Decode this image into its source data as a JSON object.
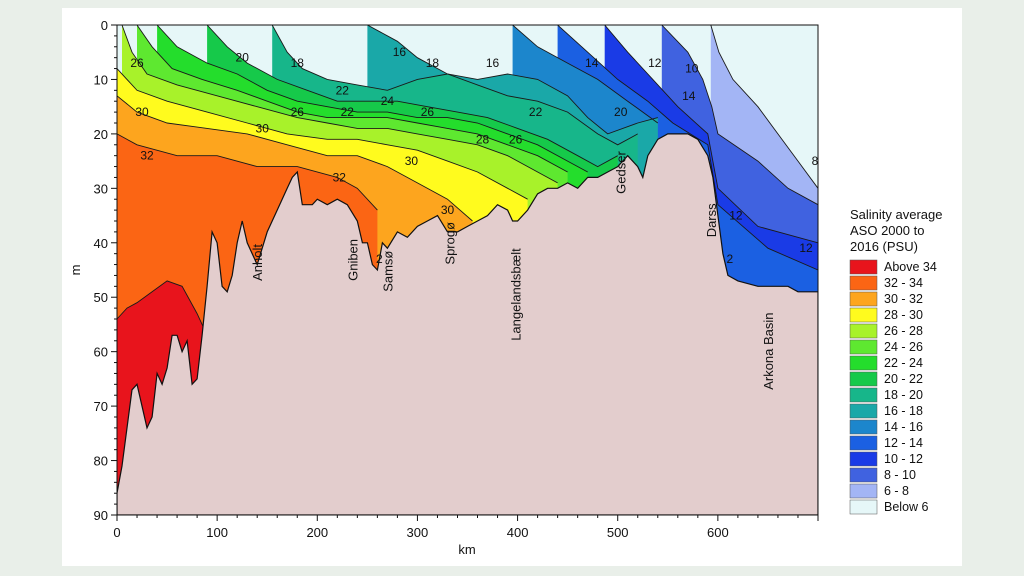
{
  "chart_data": {
    "type": "heatmap",
    "title": "",
    "xlabel": "km",
    "ylabel": "m",
    "xlim": [
      0,
      700
    ],
    "ylim": [
      0,
      90
    ],
    "x_ticks": [
      "0",
      "100",
      "200",
      "300",
      "400",
      "500",
      "600"
    ],
    "y_ticks": [
      "0",
      "10",
      "20",
      "30",
      "40",
      "50",
      "60",
      "70",
      "80",
      "90"
    ],
    "legend": {
      "title_lines": [
        "Salinity average",
        "ASO 2000 to",
        "2016 (PSU)"
      ],
      "items": [
        {
          "label": "Above 34",
          "color": "#e8141c"
        },
        {
          "label": "32 - 34",
          "color": "#fb6514"
        },
        {
          "label": "30 - 32",
          "color": "#fda51e"
        },
        {
          "label": "28 - 30",
          "color": "#fffb1e"
        },
        {
          "label": "26 - 28",
          "color": "#a8f22a"
        },
        {
          "label": "24 - 26",
          "color": "#5ee830"
        },
        {
          "label": "22 - 24",
          "color": "#24dd2c"
        },
        {
          "label": "20 - 22",
          "color": "#16c94a"
        },
        {
          "label": "18 - 20",
          "color": "#17b68a"
        },
        {
          "label": "16 - 18",
          "color": "#1aa8a8"
        },
        {
          "label": "14 - 16",
          "color": "#1c86cc"
        },
        {
          "label": "12 - 14",
          "color": "#1b60e2"
        },
        {
          "label": "10 - 12",
          "color": "#1a3be6"
        },
        {
          "label": "8 - 10",
          "color": "#4062e0"
        },
        {
          "label": "6 -  8",
          "color": "#a3b5f5"
        },
        {
          "label": "Below  6",
          "color": "#e6f7f8"
        }
      ]
    },
    "bottom_color": "#e3cdcd",
    "bathymetry": [
      [
        0,
        86
      ],
      [
        5,
        81
      ],
      [
        10,
        74
      ],
      [
        15,
        67
      ],
      [
        20,
        66
      ],
      [
        25,
        70
      ],
      [
        30,
        74
      ],
      [
        35,
        72
      ],
      [
        40,
        64
      ],
      [
        45,
        66
      ],
      [
        50,
        63
      ],
      [
        55,
        57
      ],
      [
        60,
        57
      ],
      [
        65,
        60
      ],
      [
        70,
        58
      ],
      [
        75,
        66
      ],
      [
        80,
        65
      ],
      [
        85,
        57
      ],
      [
        90,
        48
      ],
      [
        95,
        38
      ],
      [
        100,
        40
      ],
      [
        105,
        48
      ],
      [
        110,
        49
      ],
      [
        115,
        46
      ],
      [
        120,
        40
      ],
      [
        125,
        36
      ],
      [
        130,
        40
      ],
      [
        140,
        44
      ],
      [
        150,
        38
      ],
      [
        160,
        34
      ],
      [
        170,
        30
      ],
      [
        175,
        28
      ],
      [
        180,
        27
      ],
      [
        185,
        33
      ],
      [
        195,
        33
      ],
      [
        200,
        32
      ],
      [
        210,
        33
      ],
      [
        220,
        32
      ],
      [
        230,
        33
      ],
      [
        240,
        36
      ],
      [
        245,
        40
      ],
      [
        250,
        40
      ],
      [
        255,
        44
      ],
      [
        260,
        45
      ],
      [
        265,
        40
      ],
      [
        270,
        41
      ],
      [
        280,
        38
      ],
      [
        290,
        39
      ],
      [
        300,
        37
      ],
      [
        310,
        36
      ],
      [
        320,
        35
      ],
      [
        330,
        38
      ],
      [
        340,
        38
      ],
      [
        350,
        37
      ],
      [
        360,
        36
      ],
      [
        370,
        35
      ],
      [
        380,
        33
      ],
      [
        390,
        34
      ],
      [
        395,
        36
      ],
      [
        400,
        36
      ],
      [
        410,
        34
      ],
      [
        420,
        31
      ],
      [
        430,
        30
      ],
      [
        440,
        30
      ],
      [
        450,
        29
      ],
      [
        460,
        30
      ],
      [
        470,
        28
      ],
      [
        480,
        28
      ],
      [
        490,
        27
      ],
      [
        500,
        26
      ],
      [
        510,
        24
      ],
      [
        520,
        26
      ],
      [
        525,
        28
      ],
      [
        530,
        24
      ],
      [
        540,
        21
      ],
      [
        550,
        20
      ],
      [
        560,
        20
      ],
      [
        570,
        20
      ],
      [
        580,
        21
      ],
      [
        590,
        24
      ],
      [
        595,
        28
      ],
      [
        600,
        35
      ],
      [
        605,
        42
      ],
      [
        610,
        46
      ],
      [
        620,
        47
      ],
      [
        640,
        48
      ],
      [
        660,
        48
      ],
      [
        670,
        48
      ],
      [
        680,
        49
      ],
      [
        700,
        49
      ]
    ],
    "isohalines": [
      {
        "level": 6,
        "points": [
          [
            593,
            0
          ],
          [
            601,
            5
          ],
          [
            615,
            10
          ],
          [
            640,
            15
          ],
          [
            660,
            20
          ],
          [
            680,
            25
          ],
          [
            700,
            30
          ]
        ]
      },
      {
        "level": 8,
        "points": [
          [
            544,
            0
          ],
          [
            570,
            5
          ],
          [
            585,
            10
          ],
          [
            594,
            15
          ],
          [
            600,
            20
          ],
          [
            640,
            25
          ],
          [
            670,
            30
          ],
          [
            700,
            33
          ]
        ]
      },
      {
        "level": 10,
        "points": [
          [
            487,
            0
          ],
          [
            510,
            5
          ],
          [
            535,
            10
          ],
          [
            560,
            15
          ],
          [
            590,
            20
          ],
          [
            600,
            30
          ],
          [
            640,
            37
          ],
          [
            700,
            40
          ]
        ]
      },
      {
        "level": 12,
        "points": [
          [
            440,
            0
          ],
          [
            470,
            5
          ],
          [
            500,
            10
          ],
          [
            530,
            14
          ],
          [
            555,
            18
          ],
          [
            590,
            22
          ],
          [
            600,
            33
          ],
          [
            650,
            41
          ],
          [
            700,
            45
          ]
        ]
      },
      {
        "level": 14,
        "points": [
          [
            395,
            0
          ],
          [
            420,
            4
          ],
          [
            450,
            7
          ],
          [
            480,
            10
          ],
          [
            510,
            14
          ],
          [
            540,
            18
          ]
        ]
      },
      {
        "level": 16,
        "points": [
          [
            250,
            0
          ],
          [
            280,
            3
          ],
          [
            300,
            6
          ],
          [
            330,
            9
          ],
          [
            360,
            10
          ],
          [
            390,
            9
          ],
          [
            420,
            10
          ],
          [
            450,
            13
          ],
          [
            470,
            17
          ],
          [
            490,
            20
          ],
          [
            520,
            18
          ],
          [
            540,
            17
          ]
        ]
      },
      {
        "level": 18,
        "points": [
          [
            155,
            0
          ],
          [
            170,
            5
          ],
          [
            185,
            8
          ],
          [
            210,
            10
          ],
          [
            240,
            11
          ],
          [
            270,
            12
          ],
          [
            300,
            10
          ],
          [
            330,
            9
          ],
          [
            360,
            11
          ],
          [
            390,
            13
          ],
          [
            420,
            14
          ],
          [
            450,
            16
          ],
          [
            480,
            20
          ],
          [
            500,
            22
          ],
          [
            520,
            20
          ]
        ]
      },
      {
        "level": 20,
        "points": [
          [
            90,
            0
          ],
          [
            110,
            4
          ],
          [
            130,
            7
          ],
          [
            160,
            10
          ],
          [
            190,
            12
          ],
          [
            220,
            14
          ],
          [
            250,
            14
          ],
          [
            280,
            14
          ],
          [
            310,
            15
          ],
          [
            340,
            16
          ],
          [
            370,
            17
          ],
          [
            400,
            19
          ],
          [
            430,
            21
          ],
          [
            460,
            24
          ],
          [
            480,
            26
          ],
          [
            500,
            24
          ]
        ]
      },
      {
        "level": 22,
        "points": [
          [
            40,
            0
          ],
          [
            60,
            4
          ],
          [
            90,
            7
          ],
          [
            120,
            9
          ],
          [
            150,
            12
          ],
          [
            180,
            14
          ],
          [
            210,
            15
          ],
          [
            240,
            16
          ],
          [
            270,
            16
          ],
          [
            300,
            17
          ],
          [
            330,
            17
          ],
          [
            360,
            18
          ],
          [
            390,
            20
          ],
          [
            420,
            22
          ],
          [
            450,
            25
          ],
          [
            470,
            27
          ]
        ]
      },
      {
        "level": 24,
        "points": [
          [
            20,
            0
          ],
          [
            35,
            4
          ],
          [
            55,
            8
          ],
          [
            85,
            10
          ],
          [
            120,
            12
          ],
          [
            150,
            14
          ],
          [
            180,
            16
          ],
          [
            210,
            17
          ],
          [
            240,
            17
          ],
          [
            270,
            17
          ],
          [
            300,
            18
          ],
          [
            330,
            19
          ],
          [
            360,
            20
          ],
          [
            390,
            22
          ],
          [
            420,
            24
          ],
          [
            450,
            27
          ]
        ]
      },
      {
        "level": 26,
        "points": [
          [
            5,
            0
          ],
          [
            15,
            5
          ],
          [
            30,
            9
          ],
          [
            60,
            11
          ],
          [
            100,
            13
          ],
          [
            140,
            15
          ],
          [
            180,
            17
          ],
          [
            210,
            18
          ],
          [
            240,
            19
          ],
          [
            270,
            19
          ],
          [
            300,
            20
          ],
          [
            330,
            21
          ],
          [
            360,
            22
          ],
          [
            390,
            24
          ],
          [
            420,
            27
          ],
          [
            440,
            29
          ]
        ]
      },
      {
        "level": 28,
        "points": [
          [
            0,
            8
          ],
          [
            20,
            12
          ],
          [
            50,
            14
          ],
          [
            90,
            16
          ],
          [
            130,
            18
          ],
          [
            170,
            20
          ],
          [
            210,
            21
          ],
          [
            240,
            21
          ],
          [
            270,
            22
          ],
          [
            300,
            23
          ],
          [
            330,
            25
          ],
          [
            360,
            27
          ],
          [
            390,
            30
          ],
          [
            410,
            32
          ]
        ]
      },
      {
        "level": 30,
        "points": [
          [
            0,
            13
          ],
          [
            20,
            16
          ],
          [
            50,
            18
          ],
          [
            90,
            19
          ],
          [
            130,
            20
          ],
          [
            170,
            22
          ],
          [
            210,
            24
          ],
          [
            240,
            24
          ],
          [
            270,
            26
          ],
          [
            300,
            29
          ],
          [
            330,
            32
          ],
          [
            355,
            36
          ]
        ]
      },
      {
        "level": 32,
        "points": [
          [
            0,
            20
          ],
          [
            20,
            22
          ],
          [
            60,
            24
          ],
          [
            100,
            24
          ],
          [
            140,
            26
          ],
          [
            180,
            26
          ],
          [
            220,
            28
          ],
          [
            240,
            30
          ],
          [
            260,
            34
          ]
        ]
      },
      {
        "level": 34,
        "points": [
          [
            0,
            54
          ],
          [
            10,
            52
          ],
          [
            20,
            51
          ],
          [
            35,
            49
          ],
          [
            50,
            47
          ],
          [
            65,
            48
          ],
          [
            80,
            53
          ],
          [
            90,
            57
          ]
        ]
      }
    ],
    "isoline_labels": [
      {
        "text": "26",
        "x": 20,
        "y": 7
      },
      {
        "text": "20",
        "x": 125,
        "y": 6
      },
      {
        "text": "18",
        "x": 180,
        "y": 7
      },
      {
        "text": "16",
        "x": 282,
        "y": 5
      },
      {
        "text": "18",
        "x": 315,
        "y": 7
      },
      {
        "text": "16",
        "x": 375,
        "y": 7
      },
      {
        "text": "14",
        "x": 474,
        "y": 7
      },
      {
        "text": "12",
        "x": 537,
        "y": 7
      },
      {
        "text": "10",
        "x": 574,
        "y": 8
      },
      {
        "text": "22",
        "x": 225,
        "y": 12
      },
      {
        "text": "24",
        "x": 270,
        "y": 14
      },
      {
        "text": "26",
        "x": 180,
        "y": 16
      },
      {
        "text": "22",
        "x": 230,
        "y": 16
      },
      {
        "text": "26",
        "x": 310,
        "y": 16
      },
      {
        "text": "22",
        "x": 418,
        "y": 16
      },
      {
        "text": "20",
        "x": 503,
        "y": 16
      },
      {
        "text": "14",
        "x": 571,
        "y": 13
      },
      {
        "text": "30",
        "x": 25,
        "y": 16
      },
      {
        "text": "30",
        "x": 145,
        "y": 19
      },
      {
        "text": "28",
        "x": 365,
        "y": 21
      },
      {
        "text": "26",
        "x": 398,
        "y": 21
      },
      {
        "text": "32",
        "x": 30,
        "y": 24
      },
      {
        "text": "30",
        "x": 294,
        "y": 25
      },
      {
        "text": "32",
        "x": 222,
        "y": 28
      },
      {
        "text": "30",
        "x": 330,
        "y": 34
      },
      {
        "text": "8",
        "x": 697,
        "y": 25
      },
      {
        "text": "12",
        "x": 618,
        "y": 35
      },
      {
        "text": "12",
        "x": 688,
        "y": 41
      },
      {
        "text": "2",
        "x": 612,
        "y": 43
      },
      {
        "text": "2",
        "x": 262,
        "y": 43
      }
    ],
    "locations": [
      {
        "name": "Anholt",
        "x": 145,
        "y": 47
      },
      {
        "name": "Gniben",
        "x": 240,
        "y": 47
      },
      {
        "name": "Samsø",
        "x": 275,
        "y": 49
      },
      {
        "name": "Sprogø",
        "x": 337,
        "y": 44
      },
      {
        "name": "Langelandsbælt",
        "x": 403,
        "y": 58
      },
      {
        "name": "Gedser",
        "x": 508,
        "y": 31
      },
      {
        "name": "Darss",
        "x": 598,
        "y": 39
      },
      {
        "name": "Arkona Basin",
        "x": 655,
        "y": 67
      }
    ]
  }
}
